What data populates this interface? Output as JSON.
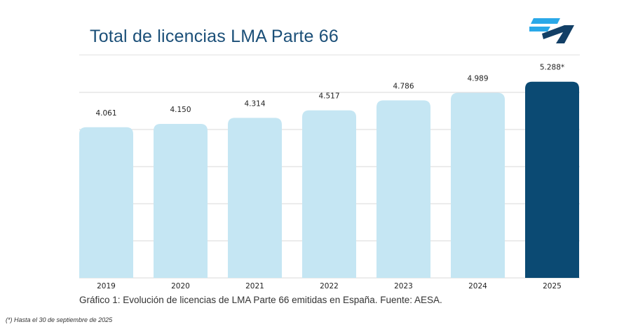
{
  "title": "Total de licencias LMA Parte 66",
  "caption": "Gráfico 1: Evolución de licencias de LMA Parte 66 emitidas en España. Fuente: AESA.",
  "footnote": "(*) Hasta el 30 de septiembre de 2025",
  "colors": {
    "title": "#1b4f78",
    "bar": "#c5e6f3",
    "highlight_bar": "#0b4a73",
    "logo_light": "#2aa8e8",
    "logo_dark": "#123f66"
  },
  "chart_data": {
    "type": "bar",
    "title": "Total de licencias LMA Parte 66",
    "categories": [
      "2019",
      "2020",
      "2021",
      "2022",
      "2023",
      "2024",
      "2025"
    ],
    "values": [
      4061,
      4150,
      4314,
      4517,
      4786,
      4989,
      5288
    ],
    "data_labels": [
      "4.061",
      "4.150",
      "4.314",
      "4.517",
      "4.786",
      "4.989",
      "5.288*"
    ],
    "highlight_index": 6,
    "xlabel": "",
    "ylabel": "",
    "ylim": [
      0,
      5000
    ],
    "grid": true,
    "grid_step": 1000,
    "y_tick_labels_shown": false
  }
}
